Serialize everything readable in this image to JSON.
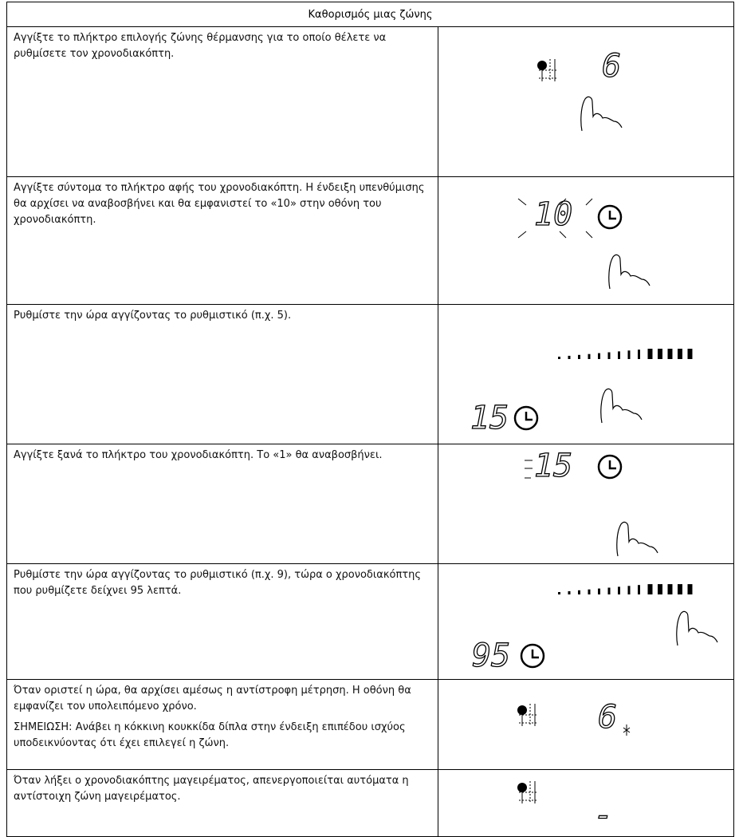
{
  "header": {
    "title": "Καθορισμός μιας ζώνης"
  },
  "rows": [
    {
      "text": [
        "Αγγίξτε το πλήκτρο επιλογής ζώνης θέρμανσης για το οποίο θέλετε να ρυθμίσετε τον χρονοδιακόπτη."
      ],
      "display": "6"
    },
    {
      "text": [
        "Αγγίξτε σύντομα το πλήκτρο αφής του χρονοδιακόπτη. Η ένδειξη υπενθύμισης θα αρχίσει να αναβοσβήνει και θα εμφανιστεί το «10» στην οθόνη του χρονοδιακόπτη."
      ],
      "display": "10"
    },
    {
      "text": [
        "Ρυθμίστε την ώρα αγγίζοντας το ρυθμιστικό (π.χ. 5)."
      ],
      "display": "15"
    },
    {
      "text": [
        "Αγγίξτε ξανά το πλήκτρο του χρονοδιακόπτη. Το «1» θα αναβοσβήνει."
      ],
      "display": "15"
    },
    {
      "text": [
        "Ρυθμίστε την ώρα αγγίζοντας το ρυθμιστικό (π.χ. 9), τώρα ο χρονοδιακόπτης που ρυθμίζετε δείχνει 95 λεπτά."
      ],
      "display": "95"
    },
    {
      "text": [
        "Όταν οριστεί η ώρα, θα αρχίσει αμέσως η αντίστροφη μέτρηση. Η οθόνη θα εμφανίζει τον υπολειπόμενο χρόνο.",
        "ΣΗΜΕΙΩΣΗ: Ανάβει η κόκκινη κουκκίδα δίπλα στην ένδειξη επιπέδου ισχύος υποδεικνύοντας ότι έχει επιλεγεί η ζώνη."
      ],
      "display": "6"
    },
    {
      "text": [
        "Όταν λήξει ο χρονοδιακόπτης μαγειρέματος, απενεργοποιείται αυτόματα η αντίστοιχη ζώνη μαγειρέματος."
      ],
      "display": "-"
    }
  ]
}
